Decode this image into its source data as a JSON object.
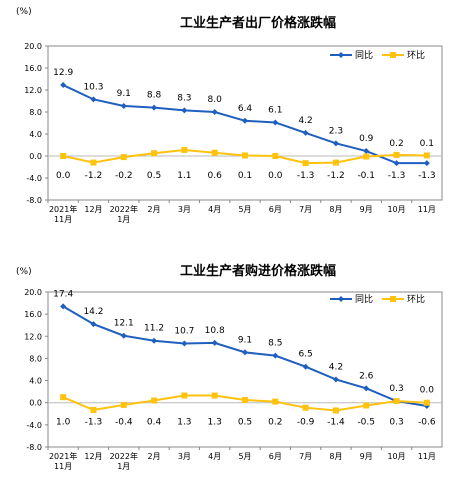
{
  "colors": {
    "yoy": "#1f5fbf",
    "mom": "#ffc20e",
    "axis": "#888888",
    "text": "#000000"
  },
  "chart_data": [
    {
      "type": "line",
      "title": "工业生产者出厂价格涨跌幅",
      "unit": "(%)",
      "categories": [
        "2021年 11月",
        "12月",
        "2022年 1月",
        "2月",
        "3月",
        "4月",
        "5月",
        "6月",
        "7月",
        "8月",
        "9月",
        "10月",
        "11月"
      ],
      "ylim": [
        -8.0,
        20.0
      ],
      "yticks": [
        "20.0",
        "16.0",
        "12.0",
        "8.0",
        "4.0",
        "0.0",
        "-4.0",
        "-8.0"
      ],
      "legend_position": "top-right",
      "series": [
        {
          "name": "同比",
          "values": [
            12.9,
            10.3,
            9.1,
            8.8,
            8.3,
            8.0,
            6.4,
            6.1,
            4.2,
            2.3,
            0.9,
            -1.3,
            -1.3
          ],
          "labels": [
            "12.9",
            "10.3",
            "9.1",
            "8.8",
            "8.3",
            "8.0",
            "6.4",
            "6.1",
            "4.2",
            "2.3",
            "0.9",
            "-1.3",
            "-1.3"
          ]
        },
        {
          "name": "环比",
          "values": [
            0.0,
            -1.2,
            -0.2,
            0.5,
            1.1,
            0.6,
            0.1,
            0.0,
            -1.3,
            -1.2,
            -0.1,
            0.2,
            0.1
          ],
          "labels": [
            "0.0",
            "-1.2",
            "-0.2",
            "0.5",
            "1.1",
            "0.6",
            "0.1",
            "0.0",
            "-1.3",
            "-1.2",
            "-0.1",
            "0.2",
            "0.1"
          ]
        }
      ]
    },
    {
      "type": "line",
      "title": "工业生产者购进价格涨跌幅",
      "unit": "(%)",
      "categories": [
        "2021年 11月",
        "12月",
        "2022年 1月",
        "2月",
        "3月",
        "4月",
        "5月",
        "6月",
        "7月",
        "8月",
        "9月",
        "10月",
        "11月"
      ],
      "ylim": [
        -8.0,
        20.0
      ],
      "yticks": [
        "20.0",
        "16.0",
        "12.0",
        "8.0",
        "4.0",
        "0.0",
        "-4.0",
        "-8.0"
      ],
      "legend_position": "top-right",
      "series": [
        {
          "name": "同比",
          "values": [
            17.4,
            14.2,
            12.1,
            11.2,
            10.7,
            10.8,
            9.1,
            8.5,
            6.5,
            4.2,
            2.6,
            0.3,
            -0.6
          ],
          "labels": [
            "17.4",
            "14.2",
            "12.1",
            "11.2",
            "10.7",
            "10.8",
            "9.1",
            "8.5",
            "6.5",
            "4.2",
            "2.6",
            "0.3",
            "-0.6"
          ]
        },
        {
          "name": "环比",
          "values": [
            1.0,
            -1.3,
            -0.4,
            0.4,
            1.3,
            1.3,
            0.5,
            0.2,
            -0.9,
            -1.4,
            -0.5,
            0.3,
            0.0
          ],
          "labels": [
            "1.0",
            "-1.3",
            "-0.4",
            "0.4",
            "1.3",
            "1.3",
            "0.5",
            "0.2",
            "-0.9",
            "-1.4",
            "-0.5",
            "0.3",
            "0.0"
          ]
        }
      ]
    }
  ]
}
